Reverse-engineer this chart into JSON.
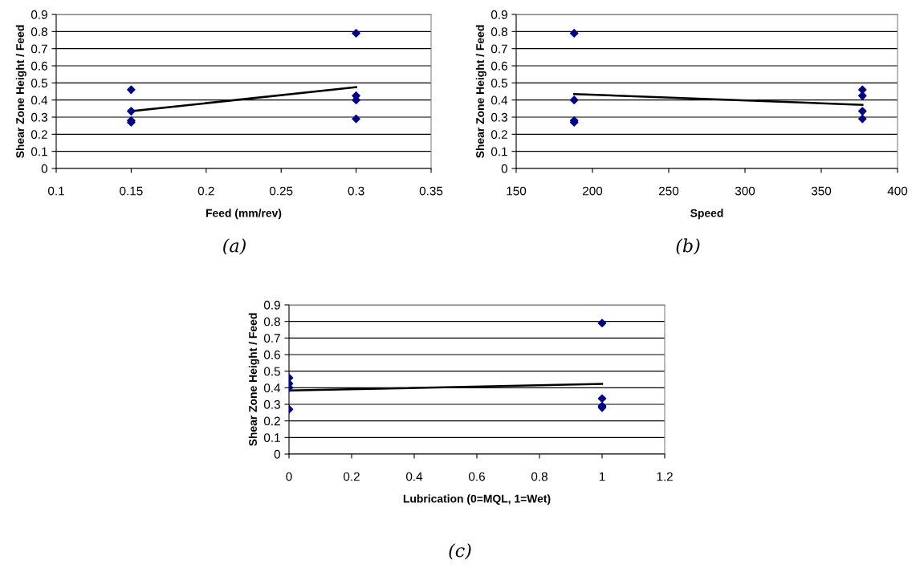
{
  "chart_data": [
    {
      "type": "scatter",
      "xlabel": "Feed (mm/rev)",
      "ylabel": "Shear Zone Height / Feed",
      "annotations": [
        "(a)"
      ],
      "xlim": [
        0.1,
        0.35
      ],
      "xticks": [
        0.1,
        0.15,
        0.2,
        0.25,
        0.3,
        0.35
      ],
      "ylim": [
        0,
        0.9
      ],
      "yticks": [
        0,
        0.1,
        0.2,
        0.3,
        0.4,
        0.5,
        0.6,
        0.7,
        0.8,
        0.9
      ],
      "grid": "y",
      "legend": false,
      "series": [
        {
          "marker": "diamond",
          "color": "#00008b",
          "x": [
            0.15,
            0.15,
            0.15,
            0.15,
            0.3,
            0.3,
            0.3,
            0.3
          ],
          "values": [
            0.46,
            0.335,
            0.28,
            0.27,
            0.79,
            0.425,
            0.4,
            0.29
          ]
        },
        {
          "type": "line",
          "color": "#000000",
          "x": [
            0.15,
            0.3
          ],
          "values": [
            0.335,
            0.475
          ]
        }
      ]
    },
    {
      "type": "scatter",
      "xlabel": "Speed",
      "ylabel": "Shear Zone Height / Feed",
      "annotations": [
        "(b)"
      ],
      "xlim": [
        150,
        400
      ],
      "xticks": [
        150,
        200,
        250,
        300,
        350,
        400
      ],
      "ylim": [
        0,
        0.9
      ],
      "yticks": [
        0,
        0.1,
        0.2,
        0.3,
        0.4,
        0.5,
        0.6,
        0.7,
        0.8,
        0.9
      ],
      "grid": "y",
      "legend": false,
      "series": [
        {
          "marker": "diamond",
          "color": "#00008b",
          "x": [
            188,
            188,
            188,
            188,
            377,
            377,
            377,
            377
          ],
          "values": [
            0.79,
            0.4,
            0.28,
            0.27,
            0.46,
            0.425,
            0.335,
            0.29
          ]
        },
        {
          "type": "line",
          "color": "#000000",
          "x": [
            188,
            377
          ],
          "values": [
            0.435,
            0.372
          ]
        }
      ]
    },
    {
      "type": "scatter",
      "xlabel": "Lubrication (0=MQL, 1=Wet)",
      "ylabel": "Shear Zone Height / Feed",
      "annotations": [
        "(c)"
      ],
      "xlim": [
        0,
        1.2
      ],
      "xticks": [
        0,
        0.2,
        0.4,
        0.6,
        0.8,
        1,
        1.2
      ],
      "ylim": [
        0,
        0.9
      ],
      "yticks": [
        0,
        0.1,
        0.2,
        0.3,
        0.4,
        0.5,
        0.6,
        0.7,
        0.8,
        0.9
      ],
      "grid": "y",
      "legend": false,
      "series": [
        {
          "marker": "diamond",
          "color": "#00008b",
          "x": [
            0,
            0,
            0,
            0,
            1,
            1,
            1,
            1
          ],
          "values": [
            0.46,
            0.425,
            0.4,
            0.27,
            0.79,
            0.335,
            0.29,
            0.28
          ]
        },
        {
          "type": "line",
          "color": "#000000",
          "x": [
            0,
            1
          ],
          "values": [
            0.383,
            0.423
          ]
        }
      ]
    }
  ]
}
